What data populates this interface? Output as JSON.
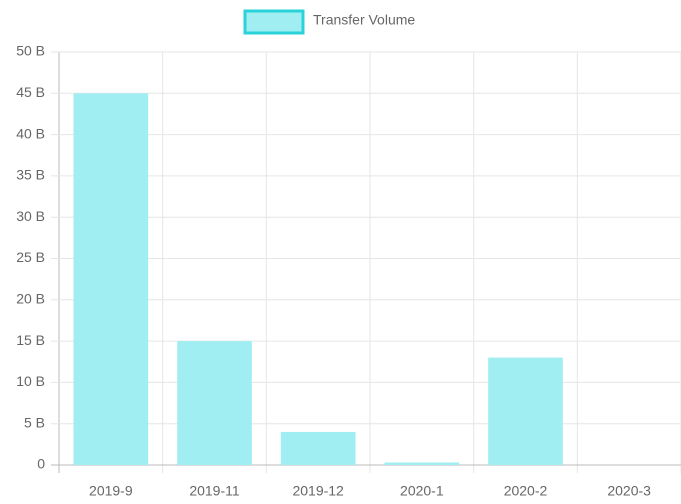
{
  "chart_data": {
    "type": "bar",
    "categories": [
      "2019-9",
      "2019-11",
      "2019-12",
      "2020-1",
      "2020-2",
      "2020-3"
    ],
    "series": [
      {
        "name": "Transfer Volume",
        "color": "#a0eef1",
        "border_color": "#2ad3d9",
        "values": [
          45,
          15,
          4,
          0.3,
          13,
          0
        ]
      }
    ],
    "ylim": [
      0,
      50
    ],
    "yticks": [
      0,
      {
        "value": 5,
        "label": "5 B"
      },
      {
        "value": 10,
        "label": "10 B"
      },
      {
        "value": 15,
        "label": "15 B"
      },
      {
        "value": 20,
        "label": "20 B"
      },
      {
        "value": 25,
        "label": "25 B"
      },
      {
        "value": 30,
        "label": "30 B"
      },
      {
        "value": 35,
        "label": "35 B"
      },
      {
        "value": 40,
        "label": "40 B"
      },
      {
        "value": 45,
        "label": "45 B"
      },
      {
        "value": 50,
        "label": "50 B"
      }
    ],
    "grid": true,
    "legend": "top"
  }
}
